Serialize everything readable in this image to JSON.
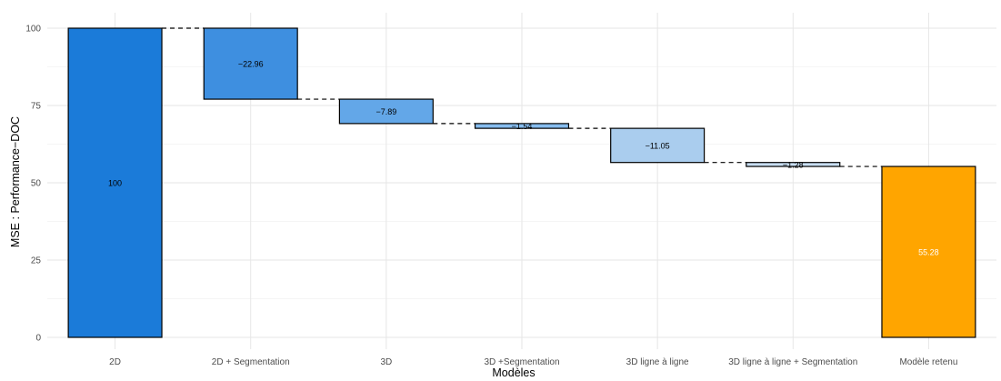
{
  "chart_data": {
    "type": "bar",
    "subtype": "waterfall",
    "title": "",
    "xlabel": "Modèles",
    "ylabel": "MSE : Performance−DOC",
    "ylim": [
      0,
      100
    ],
    "yticks": [
      "0",
      "25",
      "50",
      "75",
      "100"
    ],
    "grid": true,
    "categories": [
      "2D",
      "2D + Segmentation",
      "3D",
      "3D +Segmentation",
      "3D ligne à ligne",
      "3D ligne à ligne + Segmentation",
      "Modèle retenu"
    ],
    "bars": [
      {
        "category": "2D",
        "start": 0,
        "end": 100,
        "label": "100",
        "color": "#1b7bd9",
        "label_color": "#000000"
      },
      {
        "category": "2D + Segmentation",
        "start": 100,
        "end": 77.04,
        "label": "−22.96",
        "color": "#3e8fe0",
        "label_color": "#000000"
      },
      {
        "category": "3D",
        "start": 77.04,
        "end": 69.15,
        "label": "−7.89",
        "color": "#63a7e8",
        "label_color": "#000000"
      },
      {
        "category": "3D +Segmentation",
        "start": 69.15,
        "end": 67.61,
        "label": "−1.54",
        "color": "#86bcee",
        "label_color": "#000000"
      },
      {
        "category": "3D ligne à ligne",
        "start": 67.61,
        "end": 56.56,
        "label": "−11.05",
        "color": "#aacdee",
        "label_color": "#000000"
      },
      {
        "category": "3D ligne à ligne + Segmentation",
        "start": 56.56,
        "end": 55.28,
        "label": "−1.28",
        "color": "#c8def2",
        "label_color": "#000000"
      },
      {
        "category": "Modèle retenu",
        "start": 0,
        "end": 55.28,
        "label": "55.28",
        "color": "#ffa500",
        "label_color": "#ffffff"
      }
    ],
    "legend": "none"
  }
}
